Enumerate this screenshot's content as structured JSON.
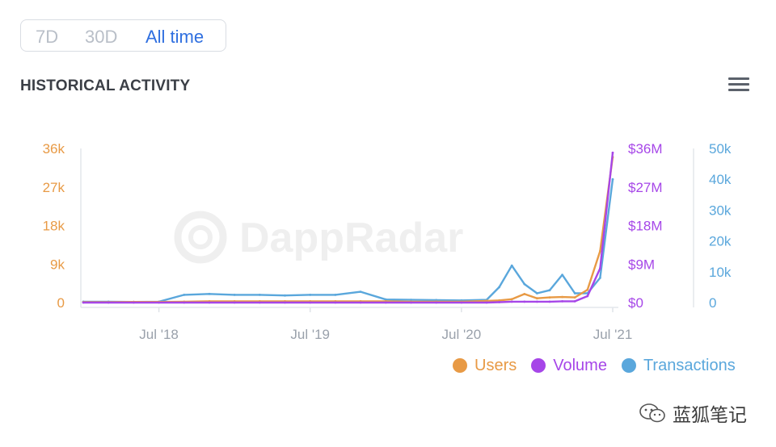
{
  "range": {
    "options": [
      "7D",
      "30D",
      "All time"
    ],
    "selected": "All time"
  },
  "header": {
    "title": "HISTORICAL ACTIVITY"
  },
  "menu": {
    "icon": "hamburger-menu-icon"
  },
  "watermark": {
    "brand": "DappRadar",
    "footer_text": "蓝狐笔记",
    "footer_icon": "wechat-icon"
  },
  "colors": {
    "users": "#e89a45",
    "volume": "#a646e8",
    "transactions": "#5aa7dc",
    "active": "#2f6fe0"
  },
  "chart_data": {
    "type": "line",
    "x_ticks": [
      "Jul '18",
      "Jul '19",
      "Jul '20",
      "Jul '21"
    ],
    "y_axes": {
      "users": {
        "ticks": [
          "0",
          "9k",
          "18k",
          "27k",
          "36k"
        ],
        "range": [
          0,
          36000
        ]
      },
      "volume": {
        "ticks": [
          "$0",
          "$9M",
          "$18M",
          "$27M",
          "$36M"
        ],
        "range": [
          0,
          36000000
        ]
      },
      "transactions": {
        "ticks": [
          "0",
          "10k",
          "20k",
          "30k",
          "40k",
          "50k"
        ],
        "range": [
          0,
          50000
        ]
      }
    },
    "x": [
      "2018-01",
      "2018-03",
      "2018-05",
      "2018-07",
      "2018-09",
      "2018-11",
      "2019-01",
      "2019-03",
      "2019-05",
      "2019-07",
      "2019-09",
      "2019-11",
      "2020-01",
      "2020-03",
      "2020-05",
      "2020-07",
      "2020-09",
      "2020-10",
      "2020-11",
      "2020-12",
      "2021-01",
      "2021-02",
      "2021-03",
      "2021-04",
      "2021-05",
      "2021-06",
      "2021-07"
    ],
    "series": [
      {
        "name": "Users",
        "values": [
          100,
          100,
          150,
          150,
          200,
          300,
          300,
          300,
          300,
          300,
          300,
          300,
          300,
          200,
          200,
          200,
          400,
          500,
          800,
          2000,
          1000,
          1200,
          1300,
          1200,
          3000,
          12000,
          34000
        ]
      },
      {
        "name": "Volume",
        "values": [
          0,
          0,
          0,
          0,
          0,
          0,
          0,
          0,
          0,
          0,
          0,
          0,
          0,
          0,
          0,
          0,
          0,
          100000,
          200000,
          200000,
          200000,
          200000,
          300000,
          300000,
          1500000,
          8000000,
          35000000
        ]
      },
      {
        "name": "Transactions",
        "values": [
          300,
          300,
          200,
          300,
          2500,
          2800,
          2500,
          2500,
          2300,
          2500,
          2500,
          3500,
          1000,
          900,
          800,
          700,
          900,
          5000,
          12000,
          6000,
          3000,
          4000,
          9000,
          3000,
          3000,
          8000,
          40000
        ]
      }
    ],
    "legend": {
      "placement": "bottom-right",
      "entries": [
        "Users",
        "Volume",
        "Transactions"
      ]
    },
    "grid": false
  }
}
